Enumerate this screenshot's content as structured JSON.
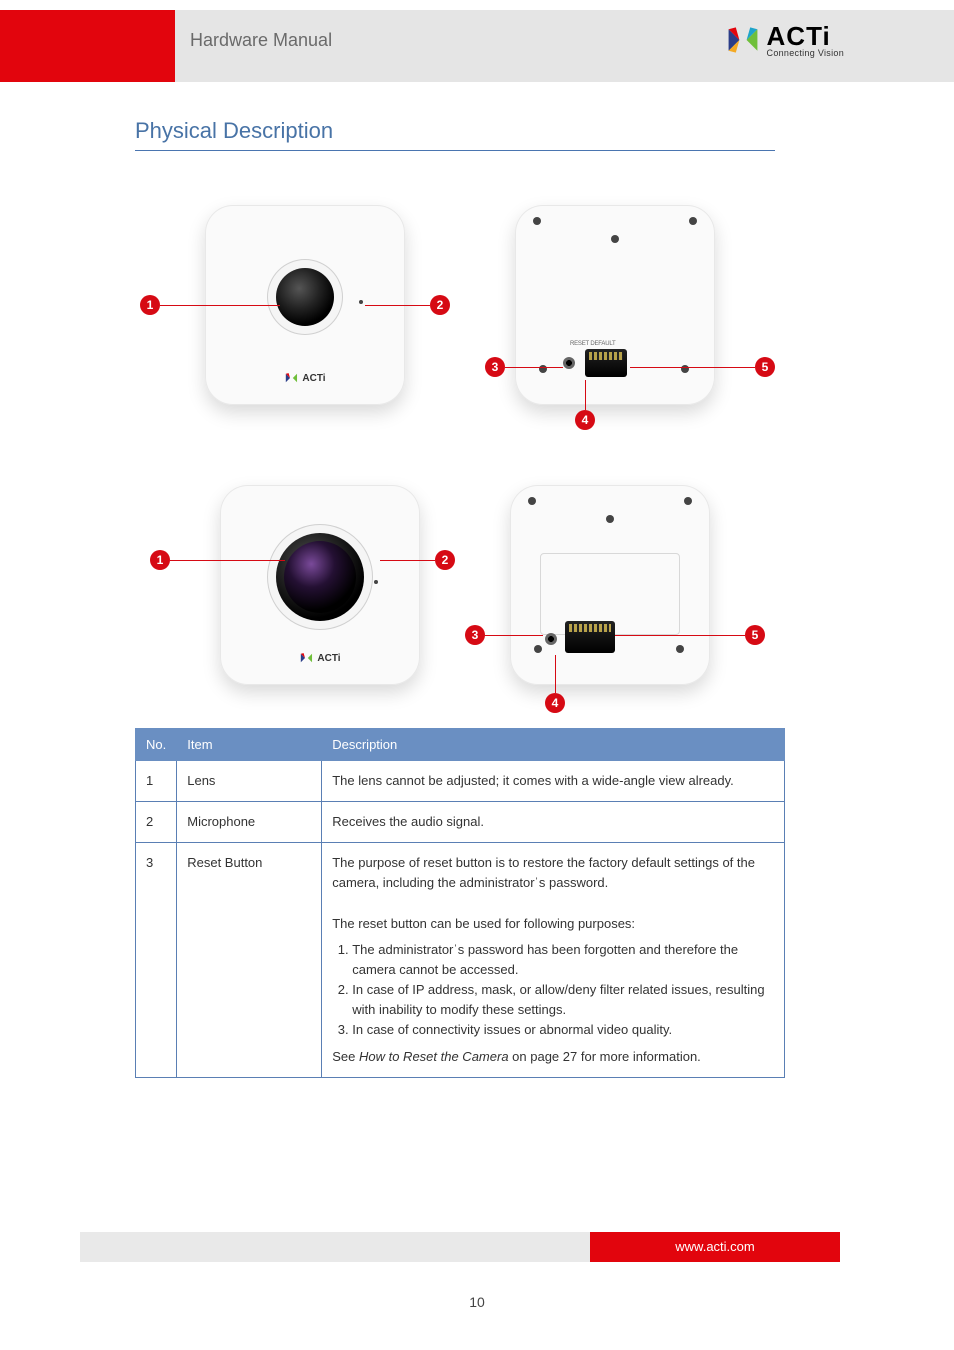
{
  "header": {
    "manual_title": "Hardware Manual",
    "logo": {
      "brand": "ACTi",
      "tagline": "Connecting Vision",
      "colors": {
        "red": "#e2050d",
        "gold": "#f4a923",
        "green": "#6fbf3a",
        "cyan": "#1fa4c9",
        "navy": "#2a3d88"
      }
    }
  },
  "section": {
    "title": "Physical Description"
  },
  "callouts": [
    "1",
    "2",
    "3",
    "4",
    "5"
  ],
  "table": {
    "head": {
      "no": "No.",
      "item": "Item",
      "desc": "Description"
    },
    "rows": [
      {
        "no": "1",
        "item": "Lens",
        "desc_html": "The lens cannot be adjusted; it comes with a wide-angle view already."
      },
      {
        "no": "2",
        "item": "Microphone",
        "desc_html": "Receives the audio signal."
      },
      {
        "no": "3",
        "item": "Reset Button",
        "desc_html": "The purpose of reset button is to restore the factory default settings of the camera, including the administratorˈs password.<br><br>The reset button can be used for following purposes:<br><ol style='margin:6px 0 6px 20px;padding:0;'><li>The administratorˈs password has been forgotten and therefore the camera cannot be accessed.</li><li>In case of IP address, mask, or allow/deny filter related issues, resulting with inability to modify these settings.</li><li>In case of connectivity issues or abnormal video quality.</li></ol><span class='reset-sub'>See <span style='font-style:italic'>How to Reset the Camera</span> on page 27 for more information.</span>"
      }
    ]
  },
  "footer": {
    "url": "www.acti.com",
    "page": "10"
  },
  "style": {
    "heading_color": "#4873a6",
    "table_header_bg": "#6a8fc2",
    "table_border": "#5a7fb4",
    "accent_red": "#e2050d",
    "band_gray": "#e5e5e5"
  }
}
